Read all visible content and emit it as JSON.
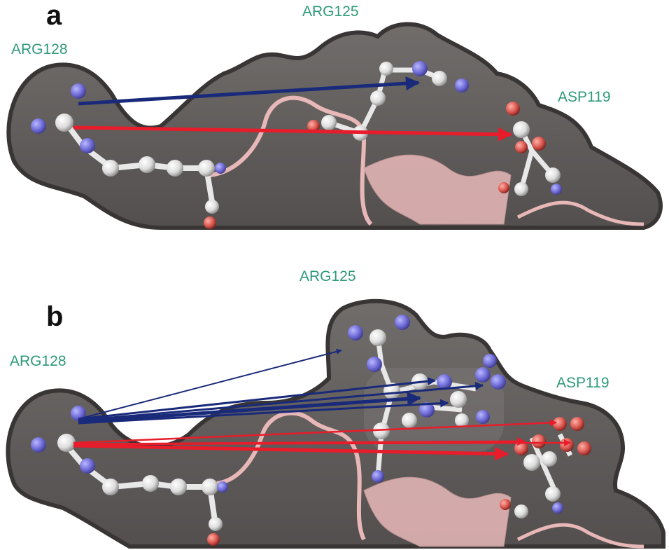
{
  "panels": [
    {
      "letter": "a",
      "labels": {
        "arg128": "ARG128",
        "arg125": "ARG125",
        "asp119": "ASP119"
      }
    },
    {
      "letter": "b",
      "labels": {
        "arg128": "ARG128",
        "arg125": "ARG125",
        "asp119": "ASP119"
      }
    }
  ],
  "colors": {
    "surface": "#595553",
    "surface_edge": "#2e2b2a",
    "carbon": "#e8e8e8",
    "nitrogen": "#6d6ad8",
    "oxygen": "#d9564e",
    "ribbon": "#e8b8b8",
    "arrow_blue": "#1a2a7a",
    "arrow_red": "#e81c2a",
    "label_green": "#2e9a78"
  }
}
